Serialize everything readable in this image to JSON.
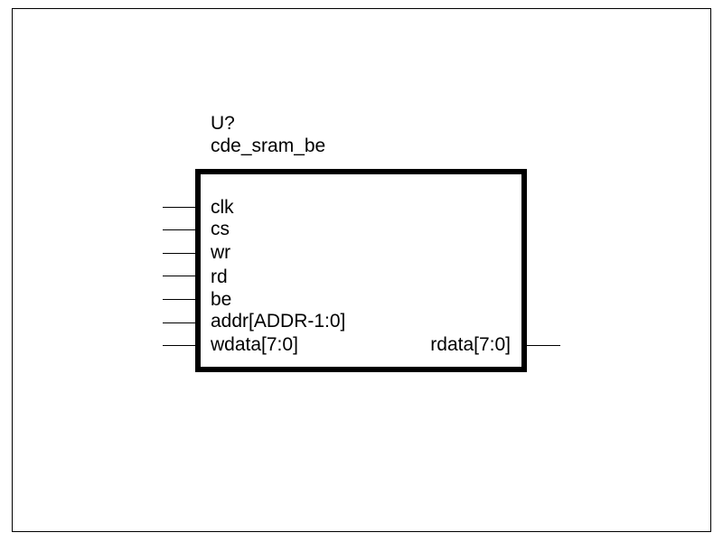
{
  "symbol": {
    "reference": "U?",
    "part_name": "cde_sram_be",
    "input_pins": [
      "clk",
      "cs",
      "wr",
      "rd",
      "be",
      "addr[ADDR-1:0]",
      "wdata[7:0]"
    ],
    "output_pins": [
      "rdata[7:0]"
    ]
  }
}
